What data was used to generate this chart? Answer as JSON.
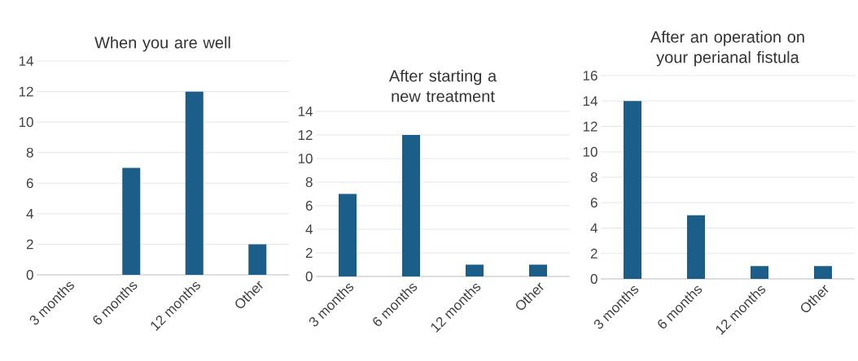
{
  "chart_data": [
    {
      "type": "bar",
      "title": "When you are well",
      "categories": [
        "3 months",
        "6 months",
        "12 months",
        "Other"
      ],
      "values": [
        0,
        7,
        12,
        2
      ],
      "color": "#1b5e8a",
      "ylim": [
        0,
        14
      ],
      "yticks": [
        0,
        2,
        4,
        6,
        8,
        10,
        12,
        14
      ],
      "grid": "y"
    },
    {
      "type": "bar",
      "title": "After starting a new treatment",
      "categories": [
        "3 months",
        "6 months",
        "12 months",
        "Other"
      ],
      "values": [
        7,
        12,
        1,
        1
      ],
      "color": "#1b5e8a",
      "ylim": [
        0,
        14
      ],
      "yticks": [
        0,
        2,
        4,
        6,
        8,
        10,
        12,
        14
      ],
      "grid": "y"
    },
    {
      "type": "bar",
      "title": "After an operation on your perianal fistula",
      "categories": [
        "3 months",
        "6 months",
        "12 months",
        "Other"
      ],
      "values": [
        14,
        5,
        1,
        1
      ],
      "color": "#1b5e8a",
      "ylim": [
        0,
        16
      ],
      "yticks": [
        0,
        2,
        4,
        6,
        8,
        10,
        12,
        14,
        16
      ],
      "grid": "y"
    }
  ]
}
